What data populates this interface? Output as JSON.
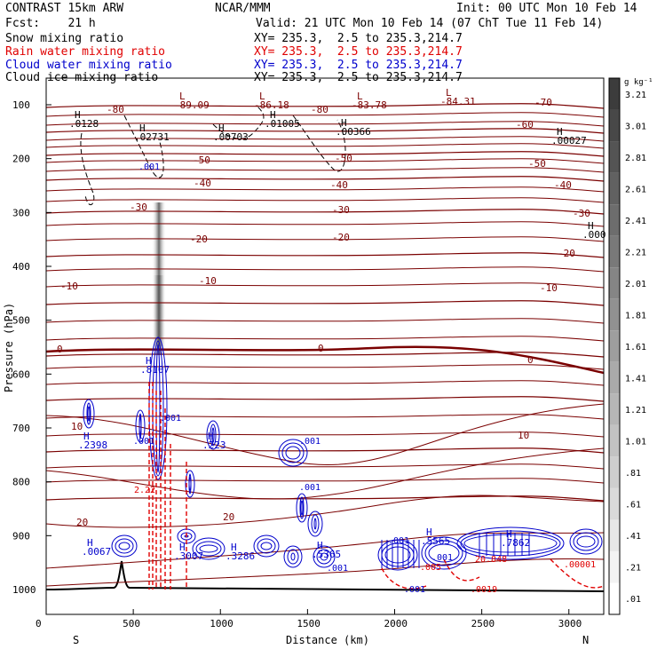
{
  "header": {
    "model": "CONTRAST 15km ARW",
    "org": "NCAR/MMM",
    "init": "Init: 00 UTC Mon 10 Feb 14",
    "fcst": "Fcst:    21 h",
    "valid": "Valid: 21 UTC Mon 10 Feb 14 (07 ChT Tue 11 Feb 14)",
    "fields": [
      {
        "name": "Snow mixing ratio",
        "xy": "XY= 235.3,  2.5 to 235.3,214.7",
        "color": "#000000"
      },
      {
        "name": "Rain water mixing ratio",
        "xy": "XY= 235.3,  2.5 to 235.3,214.7",
        "color": "#e00000"
      },
      {
        "name": "Cloud water mixing ratio",
        "xy": "XY= 235.3,  2.5 to 235.3,214.7",
        "color": "#0000cc"
      },
      {
        "name": "Cloud ice mixing ratio",
        "xy": "XY= 235.3,  2.5 to 235.3,214.7",
        "color": "#000000"
      }
    ]
  },
  "chart_data": {
    "type": "cross-section",
    "xlabel": "Distance (km)",
    "ylabel": "Pressure (hPa)",
    "xlim": [
      0,
      3200
    ],
    "ylim": [
      1050,
      70
    ],
    "x_ticks": [
      "0",
      "500",
      "1000",
      "1500",
      "2000",
      "2500",
      "3000"
    ],
    "y_ticks": [
      "100",
      "200",
      "300",
      "400",
      "500",
      "600",
      "700",
      "800",
      "900",
      "1000"
    ],
    "x_end_labels": [
      "S",
      "N"
    ],
    "colorbar": {
      "unit": "g kg⁻¹",
      "labels": [
        "3.21",
        "3.01",
        "2.81",
        "2.61",
        "2.41",
        "2.21",
        "2.01",
        "1.81",
        "1.61",
        "1.41",
        "1.21",
        "1.01",
        ".81",
        ".61",
        ".41",
        ".21",
        ".01"
      ]
    },
    "temperature_labels": [
      "-80",
      "-80",
      "-70",
      "-60",
      "-50",
      "-50",
      "-50",
      "-40",
      "-40",
      "-40",
      "-30",
      "-30",
      "-30",
      "-20",
      "-20",
      "-20",
      "-10",
      "-10",
      "-10",
      "0",
      "0",
      "0",
      "10",
      "10",
      "20",
      "20"
    ],
    "extrema_labels": [
      {
        "kind": "L",
        "value": "-89.09"
      },
      {
        "kind": "L",
        "value": "-86.18"
      },
      {
        "kind": "L",
        "value": "-83.78"
      },
      {
        "kind": "L",
        "value": "-84.31"
      },
      {
        "kind": "H",
        "value": ".0128"
      },
      {
        "kind": "H",
        "value": ".02731"
      },
      {
        "kind": "H",
        "value": ".00703"
      },
      {
        "kind": "H",
        "value": ".01005"
      },
      {
        "kind": "H",
        "value": ".00366"
      },
      {
        "kind": "H",
        "value": ".00027"
      },
      {
        "kind": "H",
        "value": ".000"
      },
      {
        "kind": "H",
        "value": ".8107"
      },
      {
        "kind": "H",
        "value": ".2398"
      },
      {
        "kind": "H",
        "value": ".223"
      },
      {
        "kind": "H",
        "value": ".0067"
      },
      {
        "kind": "H",
        "value": ".3007"
      },
      {
        "kind": "H",
        "value": ".3286"
      },
      {
        "kind": "H",
        "value": ".5365"
      },
      {
        "kind": "H",
        "value": ".5565"
      },
      {
        "kind": "H",
        "value": ".7862"
      }
    ],
    "contour_labels": [
      ".001",
      ".001",
      ".001",
      ".001",
      ".001",
      ".001",
      ".001",
      ".001",
      ".001",
      "2.22",
      "20.848",
      ".005",
      ".0019",
      ".00001"
    ]
  }
}
